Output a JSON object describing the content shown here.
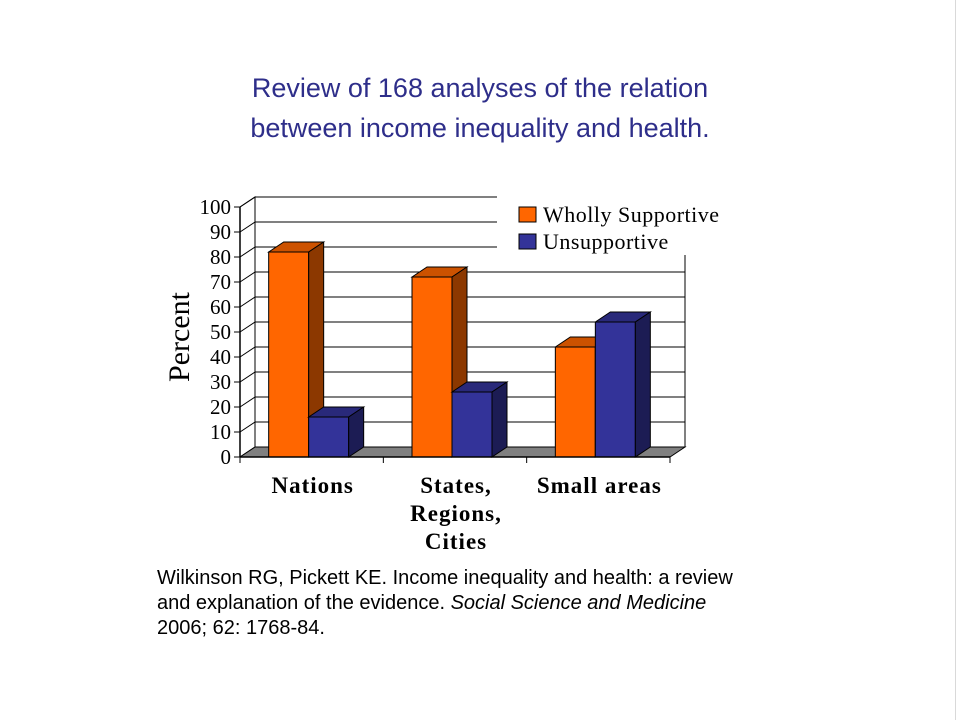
{
  "title": {
    "line1": "Review of 168 analyses of the relation",
    "line2": "between income inequality and health."
  },
  "chart_data": {
    "type": "bar",
    "categories": [
      [
        "Nations"
      ],
      [
        "States,",
        "Regions,",
        "Cities"
      ],
      [
        "Small areas"
      ]
    ],
    "series": [
      {
        "name": "Wholly Supportive",
        "values": [
          82,
          72,
          44
        ],
        "color": "#ff6600"
      },
      {
        "name": "Unsupportive",
        "values": [
          16,
          26,
          54
        ],
        "color": "#333399"
      }
    ],
    "ylabel": "Percent",
    "ylim": [
      0,
      100
    ],
    "yticks": [
      "0",
      "10",
      "20",
      "30",
      "40",
      "50",
      "60",
      "70",
      "80",
      "90",
      "100"
    ],
    "grid": true,
    "legend_position": "top-right",
    "style": "3d"
  },
  "citation": {
    "line1": "Wilkinson RG, Pickett KE. Income inequality and health: a review",
    "line2_plain": "and explanation of the evidence. ",
    "line2_journal": "Social Science and Medicine",
    "line3": "2006; 62: 1768-84."
  }
}
